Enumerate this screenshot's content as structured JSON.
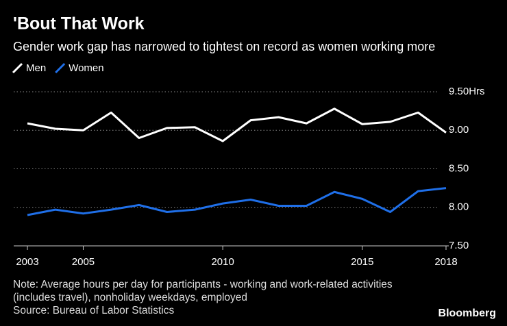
{
  "chart_data": {
    "type": "line",
    "title": "'Bout That Work",
    "subtitle": "Gender work gap has narrowed to tightest on record as women working more",
    "x": [
      2003,
      2004,
      2005,
      2006,
      2007,
      2008,
      2009,
      2010,
      2011,
      2012,
      2013,
      2014,
      2015,
      2016,
      2017,
      2018
    ],
    "series": [
      {
        "name": "Men",
        "color": "#ffffff",
        "values": [
          9.09,
          9.02,
          9.0,
          9.23,
          8.9,
          9.03,
          9.04,
          8.86,
          9.13,
          9.17,
          9.09,
          9.28,
          9.08,
          9.11,
          9.23,
          8.97
        ]
      },
      {
        "name": "Women",
        "color": "#1f6fe8",
        "values": [
          7.9,
          7.97,
          7.92,
          7.97,
          8.03,
          7.94,
          7.97,
          8.05,
          8.1,
          8.02,
          8.02,
          8.2,
          8.11,
          7.94,
          8.21,
          8.25
        ]
      }
    ],
    "xlim": [
      2003,
      2018
    ],
    "xticks": [
      2003,
      2005,
      2010,
      2015,
      2018
    ],
    "ylim": [
      7.5,
      9.5
    ],
    "yticks": [
      {
        "value": 7.5,
        "label": "7.50"
      },
      {
        "value": 8,
        "label": "8.00"
      },
      {
        "value": 8.5,
        "label": "8.50"
      },
      {
        "value": 9,
        "label": "9.00"
      },
      {
        "value": 9.5,
        "label": "9.50Hrs"
      }
    ],
    "grid": true,
    "legend": "top-left",
    "note": "Note: Average hours per day for participants - working and work-related activities (includes travel), nonholiday weekdays, employed",
    "source": "Source: Bureau of Labor Statistics",
    "brand": "Bloomberg"
  }
}
